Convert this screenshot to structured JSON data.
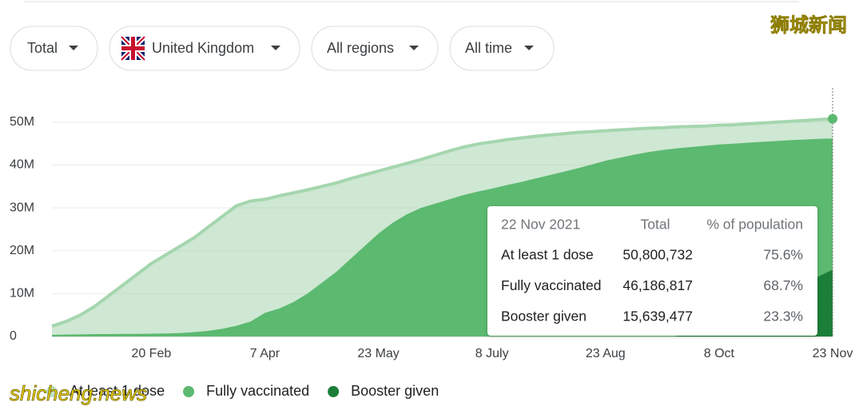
{
  "filters": [
    "Total",
    "United Kingdom",
    "All regions",
    "All time"
  ],
  "watermarks": [
    "狮城新闻",
    "shicheng.news"
  ],
  "chart_data": {
    "type": "area",
    "categories": [
      null,
      null,
      null,
      null,
      null,
      null,
      null,
      "20 Feb",
      null,
      null,
      null,
      null,
      null,
      null,
      null,
      "7 Apr",
      null,
      null,
      null,
      null,
      null,
      null,
      null,
      "23 May",
      null,
      null,
      null,
      null,
      null,
      null,
      null,
      "8 July",
      null,
      null,
      null,
      null,
      null,
      null,
      null,
      "23 Aug",
      null,
      null,
      null,
      null,
      null,
      null,
      null,
      "8 Oct",
      null,
      null,
      null,
      null,
      null,
      null,
      null,
      "23 Nov"
    ],
    "series": [
      {
        "name": "At least 1 dose",
        "color": "#a5d6ae",
        "values": [
          2400000.0,
          3500000.0,
          5000000.0,
          7000000.0,
          9500000.0,
          12000000.0,
          14500000.0,
          17000000.0,
          19000000.0,
          21000000.0,
          23000000.0,
          25500000.0,
          28000000.0,
          30500000.0,
          31600000.0,
          32000000.0,
          32800000.0,
          33500000.0,
          34200000.0,
          35000000.0,
          35800000.0,
          36800000.0,
          37700000.0,
          38600000.0,
          39500000.0,
          40400000.0,
          41300000.0,
          42300000.0,
          43300000.0,
          44200000.0,
          44900000.0,
          45400000.0,
          45900000.0,
          46300000.0,
          46700000.0,
          47000000.0,
          47300000.0,
          47600000.0,
          47800000.0,
          48000000.0,
          48200000.0,
          48400000.0,
          48600000.0,
          48700000.0,
          48900000.0,
          49000000.0,
          49100000.0,
          49300000.0,
          49400000.0,
          49600000.0,
          49800000.0,
          50000000.0,
          50200000.0,
          50400000.0,
          50600000.0,
          50800000.0
        ]
      },
      {
        "name": "Fully vaccinated",
        "color": "#5cb970",
        "values": [
          400000.0,
          450000.0,
          500000.0,
          550000.0,
          550000.0,
          600000.0,
          600000.0,
          650000.0,
          700000.0,
          800000.0,
          1000000.0,
          1300000.0,
          1800000.0,
          2500000.0,
          3500000.0,
          5500000.0,
          6500000.0,
          8000000.0,
          10000000.0,
          12500000.0,
          15000000.0,
          18000000.0,
          21000000.0,
          24000000.0,
          26500000.0,
          28500000.0,
          30000000.0,
          31000000.0,
          32000000.0,
          33000000.0,
          33800000.0,
          34500000.0,
          35300000.0,
          36000000.0,
          36800000.0,
          37600000.0,
          38400000.0,
          39200000.0,
          40100000.0,
          41000000.0,
          41700000.0,
          42400000.0,
          43000000.0,
          43500000.0,
          43900000.0,
          44200000.0,
          44500000.0,
          44800000.0,
          45000000.0,
          45200000.0,
          45400000.0,
          45600000.0,
          45800000.0,
          45950000.0,
          46100000.0,
          46200000.0
        ]
      },
      {
        "name": "Booster given",
        "color": "#1b7f3a",
        "values": [
          null,
          null,
          null,
          null,
          null,
          null,
          null,
          null,
          null,
          null,
          null,
          null,
          null,
          null,
          null,
          null,
          null,
          null,
          null,
          null,
          null,
          null,
          null,
          null,
          null,
          null,
          null,
          null,
          null,
          null,
          null,
          null,
          null,
          null,
          null,
          null,
          null,
          null,
          null,
          null,
          null,
          null,
          null,
          null,
          100000.0,
          800000.0,
          1800000.0,
          3000000.0,
          4500000.0,
          6000000.0,
          7500000.0,
          9000000.0,
          10700000.0,
          12300000.0,
          14000000.0,
          15600000.0
        ]
      }
    ],
    "ylim": [
      0,
      58000000
    ],
    "yticks": [
      0,
      {
        "value": 10000000,
        "label": "10M"
      },
      {
        "value": 20000000,
        "label": "20M"
      },
      {
        "value": 30000000,
        "label": "30M"
      },
      {
        "value": 40000000,
        "label": "40M"
      },
      {
        "value": 50000000,
        "label": "50M"
      }
    ],
    "grid": true,
    "legend": "bottom"
  },
  "tooltip": {
    "date": "22 Nov 2021",
    "columns": [
      "Total",
      "% of population"
    ],
    "rows": [
      {
        "label": "At least 1 dose",
        "total": "50,800,732",
        "percent": "75.6%"
      },
      {
        "label": "Fully vaccinated",
        "total": "46,186,817",
        "percent": "68.7%"
      },
      {
        "label": "Booster given",
        "total": "15,639,477",
        "percent": "23.3%"
      }
    ]
  }
}
